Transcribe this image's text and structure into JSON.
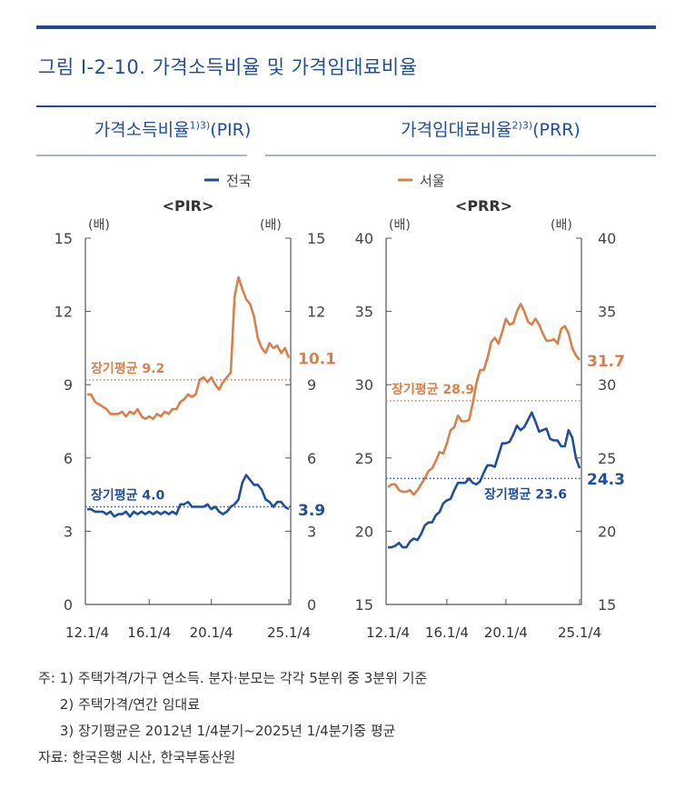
{
  "figure_title": "그림 Ⅰ-2-10. 가격소득비율 및 가격임대료비율",
  "panel_titles": [
    {
      "main": "가격소득비율",
      "sup": "1)3)",
      "suffix": "(PIR)"
    },
    {
      "main": "가격임대료비율",
      "sup": "2)3)",
      "suffix": "(PRR)"
    }
  ],
  "colors": {
    "seoul": "#d9804a",
    "national": "#1f4e9a",
    "title": "#1f4e96"
  },
  "chart_data": [
    {
      "type": "line",
      "title": "<PIR>",
      "legend": {
        "label": "전국",
        "series": "national",
        "placement": "top"
      },
      "ylabel_left": "(배)",
      "ylabel_right": "(배)",
      "ylim": [
        0,
        15
      ],
      "yticks": [
        0,
        3,
        6,
        9,
        12,
        15
      ],
      "xticks": [
        {
          "label": "12.1/4",
          "index": 0
        },
        {
          "label": "16.1/4",
          "index": 16
        },
        {
          "label": "20.1/4",
          "index": 32
        },
        {
          "label": "25.1/4",
          "index": 52
        }
      ],
      "x_range": "2012 Q1 – 2025 Q1 (quarterly)",
      "series": [
        {
          "key": "seoul",
          "color": "#d9804a",
          "end_label": "10.1",
          "values": [
            8.6,
            8.6,
            8.3,
            8.2,
            8.1,
            8.0,
            7.8,
            7.8,
            7.8,
            7.9,
            7.7,
            7.9,
            7.8,
            8.0,
            7.7,
            7.6,
            7.7,
            7.6,
            7.8,
            7.7,
            7.9,
            7.8,
            8.0,
            8.0,
            8.3,
            8.4,
            8.6,
            8.5,
            8.6,
            9.2,
            9.3,
            9.1,
            9.3,
            9.0,
            8.8,
            9.1,
            9.3,
            9.5,
            12.6,
            13.4,
            12.9,
            12.5,
            12.3,
            11.8,
            10.9,
            10.5,
            10.3,
            10.7,
            10.5,
            10.6,
            10.3,
            10.5,
            10.1
          ],
          "average": 9.2,
          "average_label": "장기평균 9.2"
        },
        {
          "key": "national",
          "color": "#1f4e9a",
          "end_label": "3.9",
          "values": [
            3.9,
            3.9,
            3.8,
            3.8,
            3.8,
            3.7,
            3.8,
            3.6,
            3.7,
            3.7,
            3.8,
            3.6,
            3.8,
            3.7,
            3.8,
            3.7,
            3.8,
            3.7,
            3.8,
            3.7,
            3.8,
            3.7,
            3.8,
            3.7,
            4.1,
            4.1,
            4.2,
            4.0,
            4.0,
            4.0,
            4.0,
            4.1,
            3.9,
            4.0,
            3.8,
            3.7,
            3.8,
            4.0,
            4.1,
            4.3,
            5.0,
            5.3,
            5.1,
            4.9,
            4.9,
            4.7,
            4.3,
            4.2,
            4.0,
            4.2,
            4.2,
            4.0,
            3.9
          ],
          "average": 4.0,
          "average_label": "장기평균 4.0"
        }
      ]
    },
    {
      "type": "line",
      "title": "<PRR>",
      "legend": {
        "label": "서울",
        "series": "seoul",
        "placement": "top"
      },
      "ylabel_left": "(배)",
      "ylabel_right": "(배)",
      "ylim": [
        15,
        40
      ],
      "yticks": [
        15,
        20,
        25,
        30,
        35,
        40
      ],
      "xticks": [
        {
          "label": "12.1/4",
          "index": 0
        },
        {
          "label": "16.1/4",
          "index": 16
        },
        {
          "label": "20.1/4",
          "index": 32
        },
        {
          "label": "25.1/4",
          "index": 52
        }
      ],
      "x_range": "2012 Q1 – 2025 Q1 (quarterly)",
      "series": [
        {
          "key": "seoul",
          "color": "#d9804a",
          "end_label": "31.7",
          "values": [
            23.0,
            23.2,
            23.2,
            22.8,
            22.7,
            22.7,
            22.8,
            22.5,
            22.8,
            23.2,
            23.6,
            24.1,
            24.3,
            24.8,
            25.4,
            25.3,
            26.0,
            26.9,
            27.1,
            27.9,
            27.5,
            27.5,
            27.6,
            28.7,
            30.1,
            31.0,
            31.0,
            31.8,
            32.9,
            33.2,
            32.8,
            33.6,
            34.5,
            34.1,
            34.2,
            35.0,
            35.5,
            35.0,
            34.3,
            34.1,
            34.5,
            34.1,
            33.5,
            33.0,
            33.0,
            33.1,
            32.8,
            33.8,
            34.0,
            33.5,
            32.5,
            32.0,
            31.7
          ],
          "average": 28.9,
          "average_label": "장기평균 28.9"
        },
        {
          "key": "national",
          "color": "#1f4e9a",
          "end_label": "24.3",
          "values": [
            18.9,
            18.9,
            19.0,
            19.2,
            18.9,
            18.9,
            19.3,
            19.5,
            19.4,
            19.8,
            20.4,
            20.6,
            20.6,
            21.1,
            21.3,
            21.9,
            22.1,
            22.2,
            22.8,
            23.3,
            23.3,
            23.3,
            23.6,
            23.3,
            23.2,
            23.4,
            24.0,
            24.5,
            24.5,
            24.4,
            25.2,
            26.0,
            26.0,
            26.1,
            26.6,
            27.2,
            26.9,
            27.1,
            27.6,
            28.1,
            27.5,
            26.8,
            26.9,
            27.0,
            26.3,
            26.2,
            26.2,
            25.8,
            25.8,
            26.9,
            26.4,
            25.0,
            24.3
          ],
          "average": 23.6,
          "average_label": "장기평균 23.6"
        }
      ]
    }
  ],
  "notes": [
    "주: 1) 주택가격/가구 연소득. 분자·분모는 각각 5분위 중 3분위 기준",
    "     2) 주택가격/연간 임대료",
    "     3) 장기평균은 2012년 1/4분기~2025년 1/4분기중 평균",
    "자료: 한국은행 시산, 한국부동산원"
  ]
}
